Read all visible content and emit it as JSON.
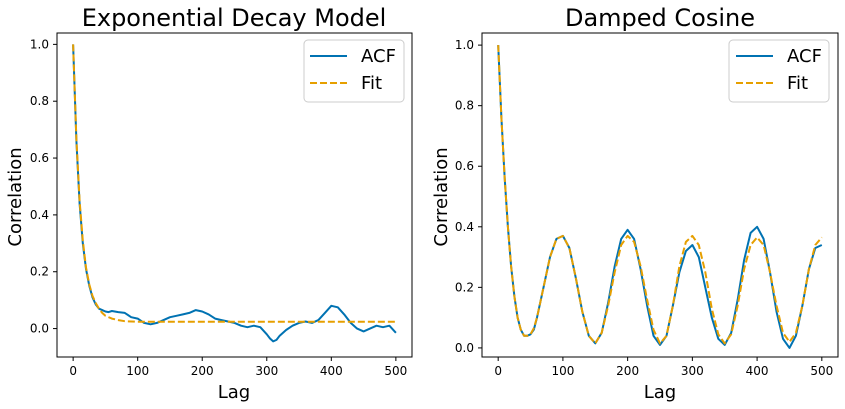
{
  "colors": {
    "acf": "#0072b2",
    "fit": "#e69f00"
  },
  "chart_data": [
    {
      "type": "line",
      "title": "Exponential Decay Model",
      "xlabel": "Lag",
      "ylabel": "Correlation",
      "xlim": [
        -25,
        525
      ],
      "ylim": [
        -0.1,
        1.04
      ],
      "xticks": [
        0,
        100,
        200,
        300,
        400,
        500
      ],
      "xtick_labels": [
        "0",
        "100",
        "200",
        "300",
        "400",
        "500"
      ],
      "yticks": [
        0.0,
        0.2,
        0.4,
        0.6,
        0.8,
        1.0
      ],
      "ytick_labels": [
        "0.0",
        "0.2",
        "0.4",
        "0.6",
        "0.8",
        "1.0"
      ],
      "grid": false,
      "legend": "top-right",
      "series": [
        {
          "name": "ACF",
          "style": "solid",
          "x": [
            0,
            5,
            10,
            15,
            20,
            25,
            30,
            35,
            40,
            45,
            50,
            55,
            60,
            70,
            80,
            90,
            100,
            110,
            120,
            130,
            140,
            150,
            160,
            170,
            180,
            190,
            200,
            210,
            220,
            230,
            240,
            250,
            260,
            270,
            280,
            290,
            300,
            305,
            310,
            315,
            320,
            330,
            340,
            350,
            360,
            370,
            380,
            390,
            400,
            410,
            420,
            430,
            440,
            450,
            460,
            470,
            480,
            490,
            500
          ],
          "y": [
            1.0,
            0.66,
            0.44,
            0.3,
            0.21,
            0.15,
            0.11,
            0.085,
            0.07,
            0.065,
            0.06,
            0.058,
            0.062,
            0.058,
            0.055,
            0.04,
            0.035,
            0.02,
            0.015,
            0.02,
            0.03,
            0.04,
            0.045,
            0.05,
            0.055,
            0.065,
            0.06,
            0.05,
            0.035,
            0.03,
            0.025,
            0.02,
            0.01,
            0.005,
            0.01,
            0.005,
            -0.02,
            -0.035,
            -0.045,
            -0.04,
            -0.025,
            -0.005,
            0.01,
            0.02,
            0.025,
            0.02,
            0.03,
            0.055,
            0.08,
            0.075,
            0.05,
            0.02,
            0.0,
            -0.01,
            0.0,
            0.01,
            0.005,
            0.01,
            -0.015
          ]
        },
        {
          "name": "Fit",
          "style": "dashed",
          "x": [
            0,
            5,
            10,
            15,
            20,
            25,
            30,
            35,
            40,
            45,
            50,
            60,
            70,
            80,
            100,
            150,
            200,
            300,
            400,
            500
          ],
          "y": [
            1.0,
            0.665,
            0.45,
            0.31,
            0.215,
            0.155,
            0.115,
            0.09,
            0.07,
            0.055,
            0.045,
            0.035,
            0.03,
            0.026,
            0.024,
            0.024,
            0.024,
            0.024,
            0.024,
            0.024
          ]
        }
      ]
    },
    {
      "type": "line",
      "title": "Damped Cosine",
      "xlabel": "Lag",
      "ylabel": "Correlation",
      "xlim": [
        -25,
        525
      ],
      "ylim": [
        -0.03,
        1.04
      ],
      "xticks": [
        0,
        100,
        200,
        300,
        400,
        500
      ],
      "xtick_labels": [
        "0",
        "100",
        "200",
        "300",
        "400",
        "500"
      ],
      "yticks": [
        0.0,
        0.2,
        0.4,
        0.6,
        0.8,
        1.0
      ],
      "ytick_labels": [
        "0.0",
        "0.2",
        "0.4",
        "0.6",
        "0.8",
        "1.0"
      ],
      "grid": false,
      "legend": "top-right",
      "series": [
        {
          "name": "ACF",
          "style": "solid",
          "x": [
            0,
            5,
            10,
            15,
            20,
            25,
            30,
            35,
            40,
            45,
            50,
            55,
            60,
            70,
            80,
            90,
            100,
            110,
            120,
            130,
            140,
            150,
            160,
            170,
            180,
            190,
            200,
            210,
            220,
            230,
            240,
            250,
            260,
            270,
            280,
            290,
            300,
            310,
            320,
            330,
            340,
            350,
            360,
            370,
            380,
            390,
            400,
            410,
            420,
            430,
            440,
            450,
            460,
            470,
            480,
            490,
            500
          ],
          "y": [
            1.0,
            0.76,
            0.56,
            0.4,
            0.27,
            0.17,
            0.1,
            0.06,
            0.04,
            0.04,
            0.045,
            0.06,
            0.1,
            0.2,
            0.3,
            0.36,
            0.37,
            0.33,
            0.23,
            0.12,
            0.04,
            0.015,
            0.05,
            0.15,
            0.27,
            0.36,
            0.39,
            0.36,
            0.26,
            0.14,
            0.04,
            0.01,
            0.04,
            0.14,
            0.25,
            0.32,
            0.34,
            0.3,
            0.2,
            0.1,
            0.03,
            0.01,
            0.05,
            0.16,
            0.29,
            0.38,
            0.4,
            0.36,
            0.25,
            0.12,
            0.03,
            0.0,
            0.04,
            0.14,
            0.26,
            0.33,
            0.34
          ]
        },
        {
          "name": "Fit",
          "style": "dashed",
          "x": [
            0,
            5,
            10,
            15,
            20,
            25,
            30,
            35,
            40,
            45,
            50,
            55,
            60,
            70,
            80,
            90,
            100,
            110,
            120,
            130,
            140,
            150,
            160,
            170,
            180,
            190,
            200,
            210,
            220,
            230,
            240,
            250,
            260,
            270,
            280,
            290,
            300,
            310,
            320,
            330,
            340,
            350,
            360,
            370,
            380,
            390,
            400,
            410,
            420,
            430,
            440,
            450,
            460,
            470,
            480,
            490,
            500
          ],
          "y": [
            1.0,
            0.76,
            0.56,
            0.4,
            0.27,
            0.17,
            0.1,
            0.06,
            0.04,
            0.04,
            0.045,
            0.065,
            0.1,
            0.2,
            0.3,
            0.36,
            0.37,
            0.33,
            0.23,
            0.12,
            0.04,
            0.015,
            0.05,
            0.14,
            0.25,
            0.34,
            0.37,
            0.35,
            0.27,
            0.16,
            0.06,
            0.015,
            0.04,
            0.14,
            0.27,
            0.35,
            0.37,
            0.34,
            0.25,
            0.13,
            0.045,
            0.015,
            0.045,
            0.14,
            0.26,
            0.34,
            0.365,
            0.34,
            0.25,
            0.14,
            0.05,
            0.02,
            0.05,
            0.14,
            0.26,
            0.34,
            0.365
          ]
        }
      ]
    }
  ]
}
